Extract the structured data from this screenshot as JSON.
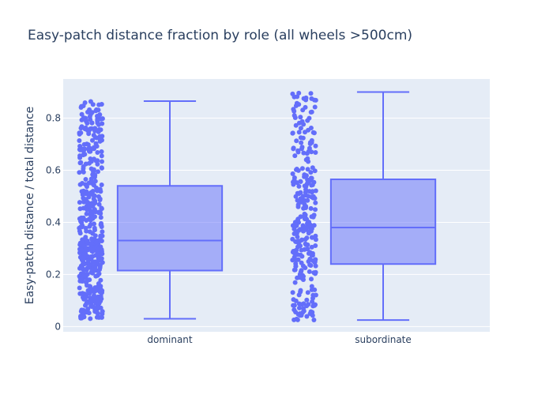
{
  "chart_data": {
    "type": "box",
    "title": "Easy-patch distance fraction by role (all wheels >500cm)",
    "xlabel": "",
    "ylabel": "Easy-patch distance / total distance",
    "categories": [
      "dominant",
      "subordinate"
    ],
    "ylim": [
      -0.02,
      0.95
    ],
    "yticks": [
      0,
      0.2,
      0.4,
      0.6,
      0.8
    ],
    "ytick_labels": [
      "0",
      "0.2",
      "0.4",
      "0.6",
      "0.8"
    ],
    "grid": true,
    "legend": "none",
    "boxpoints": "all",
    "series": [
      {
        "category": "dominant",
        "min": 0.03,
        "q1": 0.215,
        "median": 0.33,
        "q3": 0.54,
        "max": 0.865,
        "n_points_approx": 480
      },
      {
        "category": "subordinate",
        "min": 0.025,
        "q1": 0.24,
        "median": 0.38,
        "q3": 0.565,
        "max": 0.9,
        "n_points_approx": 300
      }
    ],
    "colors": {
      "box_fill": "rgba(99,110,250,0.5)",
      "box_line": "#636efa",
      "points": "#636efa",
      "plot_bg": "#e5ecf6",
      "grid": "#ffffff",
      "text": "#2a3f5f"
    }
  }
}
